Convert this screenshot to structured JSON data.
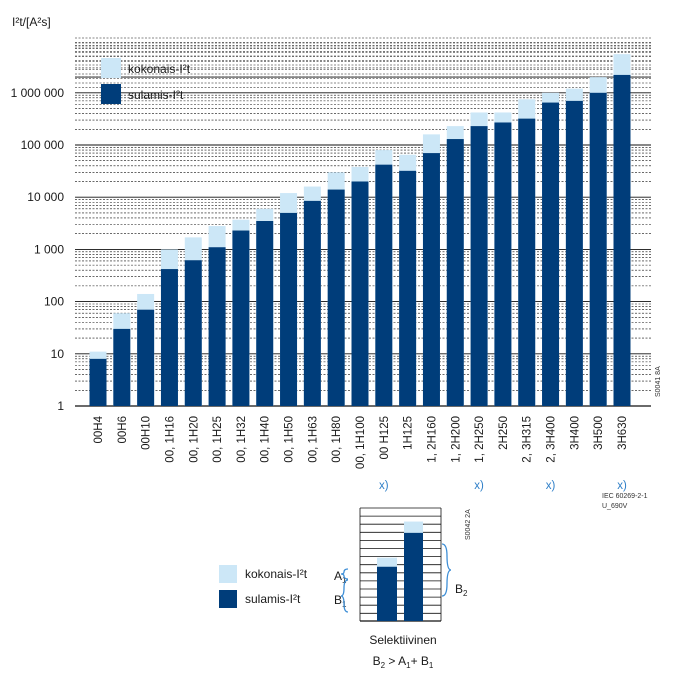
{
  "chart_data": {
    "type": "bar",
    "ylabel": "I²t/[A²s]",
    "yscale": "log",
    "ylim": [
      1,
      10000000
    ],
    "yticks": [
      "1",
      "10",
      "100",
      "1 000",
      "10 000",
      "100 000",
      "1 000 000"
    ],
    "categories": [
      "00H4",
      "00H6",
      "00H10",
      "00, 1H16",
      "00, 1H20",
      "00, 1H25",
      "00, 1H32",
      "00, 1H40",
      "00, 1H50",
      "00, 1H63",
      "00, 1H80",
      "00, 1H100",
      "00 H125",
      "1H125",
      "1, 2H160",
      "1, 2H200",
      "1, 2H250",
      "2H250",
      "2, 3H315",
      "2, 3H400",
      "3H400",
      "3H500",
      "3H630"
    ],
    "marks": [
      "",
      "",
      "",
      "",
      "",
      "",
      "",
      "",
      "",
      "",
      "",
      "",
      "x)",
      "",
      "",
      "",
      "x)",
      "",
      "",
      "x)",
      "",
      "",
      "x)"
    ],
    "series": [
      {
        "name": "kokonais-I²t",
        "color": "#cce7f7",
        "values": [
          11,
          60,
          140,
          1000,
          1700,
          2800,
          3700,
          6000,
          12000,
          16000,
          30000,
          38000,
          80000,
          65000,
          160000,
          230000,
          420000,
          420000,
          750000,
          1000000,
          1200000,
          2000000,
          5500000
        ]
      },
      {
        "name": "sulamis-I²t",
        "color": "#003d7a",
        "values": [
          8,
          30,
          70,
          420,
          620,
          1100,
          2300,
          3500,
          5000,
          8500,
          14000,
          20000,
          42000,
          32000,
          70000,
          130000,
          230000,
          270000,
          320000,
          650000,
          700000,
          1000000,
          2200000
        ]
      }
    ],
    "legend_position": "top-left",
    "side_code": "S0041 8A",
    "footnote_lines": [
      "IEC 60269-2-1",
      "U_690V"
    ]
  },
  "selectivity": {
    "legend_total": "kokonais-I²t",
    "legend_melting": "sulamis-I²t",
    "label_a": "A",
    "label_b": "B",
    "label_b2": "B",
    "sub_1": "1",
    "sub_2": "2",
    "side_code": "S0042 2A",
    "title": "Selektiivinen",
    "formula": "B2 > A1+ B1",
    "bar1_total": 0.56,
    "bar1_melt": 0.48,
    "bar2_total": 0.88,
    "bar2_melt": 0.78,
    "colors": {
      "total": "#cce7f7",
      "melt": "#003d7a",
      "brace": "#3d8ed6"
    }
  }
}
